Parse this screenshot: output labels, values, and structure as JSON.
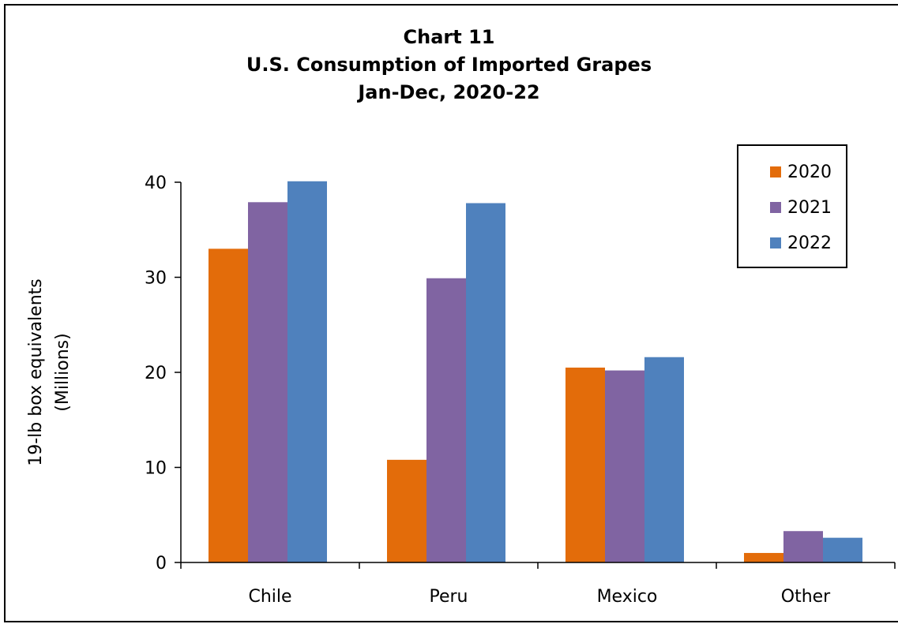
{
  "title_lines": [
    "Chart 11",
    "U.S. Consumption of Imported Grapes",
    "Jan-Dec, 2020-22"
  ],
  "colors": {
    "2020": "#E36C0A",
    "2021": "#8064A2",
    "2022": "#4F81BD"
  },
  "chart_data": {
    "type": "bar",
    "title": "Chart 11 U.S. Consumption of Imported Grapes Jan-Dec, 2020-22",
    "categories": [
      "Chile",
      "Peru",
      "Mexico",
      "Other"
    ],
    "series": [
      {
        "name": "2020",
        "values": [
          33.0,
          10.8,
          20.5,
          1.0
        ]
      },
      {
        "name": "2021",
        "values": [
          37.9,
          29.9,
          20.2,
          3.3
        ]
      },
      {
        "name": "2022",
        "values": [
          40.1,
          37.8,
          21.6,
          2.6
        ]
      }
    ],
    "xlabel": "",
    "ylabel": "19-lb box equivalents (Millions)",
    "ylabel_lines": [
      "19-lb box equivalents",
      "(Millions)"
    ],
    "ylim": [
      0,
      40
    ],
    "yticks": [
      "0",
      "10",
      "20",
      "30",
      "40"
    ],
    "grid": false,
    "legend_position": "top-right"
  }
}
